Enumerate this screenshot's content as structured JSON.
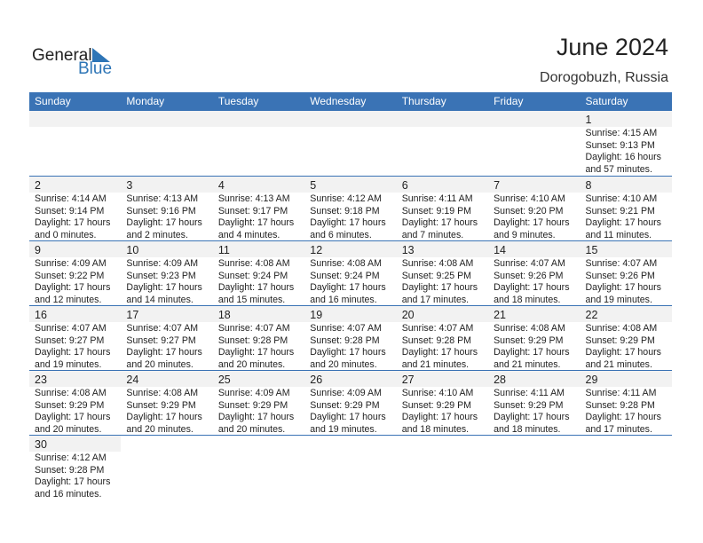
{
  "logo": {
    "text1": "General",
    "text2": "Blue"
  },
  "title": "June 2024",
  "location": "Dorogobuzh, Russia",
  "weekdays": [
    "Sunday",
    "Monday",
    "Tuesday",
    "Wednesday",
    "Thursday",
    "Friday",
    "Saturday"
  ],
  "accent": "#3a73b5",
  "weeks": [
    [
      null,
      null,
      null,
      null,
      null,
      null,
      {
        "day": "1",
        "sunrise": "Sunrise: 4:15 AM",
        "sunset": "Sunset: 9:13 PM",
        "daylight1": "Daylight: 16 hours",
        "daylight2": "and 57 minutes."
      }
    ],
    [
      {
        "day": "2",
        "sunrise": "Sunrise: 4:14 AM",
        "sunset": "Sunset: 9:14 PM",
        "daylight1": "Daylight: 17 hours",
        "daylight2": "and 0 minutes."
      },
      {
        "day": "3",
        "sunrise": "Sunrise: 4:13 AM",
        "sunset": "Sunset: 9:16 PM",
        "daylight1": "Daylight: 17 hours",
        "daylight2": "and 2 minutes."
      },
      {
        "day": "4",
        "sunrise": "Sunrise: 4:13 AM",
        "sunset": "Sunset: 9:17 PM",
        "daylight1": "Daylight: 17 hours",
        "daylight2": "and 4 minutes."
      },
      {
        "day": "5",
        "sunrise": "Sunrise: 4:12 AM",
        "sunset": "Sunset: 9:18 PM",
        "daylight1": "Daylight: 17 hours",
        "daylight2": "and 6 minutes."
      },
      {
        "day": "6",
        "sunrise": "Sunrise: 4:11 AM",
        "sunset": "Sunset: 9:19 PM",
        "daylight1": "Daylight: 17 hours",
        "daylight2": "and 7 minutes."
      },
      {
        "day": "7",
        "sunrise": "Sunrise: 4:10 AM",
        "sunset": "Sunset: 9:20 PM",
        "daylight1": "Daylight: 17 hours",
        "daylight2": "and 9 minutes."
      },
      {
        "day": "8",
        "sunrise": "Sunrise: 4:10 AM",
        "sunset": "Sunset: 9:21 PM",
        "daylight1": "Daylight: 17 hours",
        "daylight2": "and 11 minutes."
      }
    ],
    [
      {
        "day": "9",
        "sunrise": "Sunrise: 4:09 AM",
        "sunset": "Sunset: 9:22 PM",
        "daylight1": "Daylight: 17 hours",
        "daylight2": "and 12 minutes."
      },
      {
        "day": "10",
        "sunrise": "Sunrise: 4:09 AM",
        "sunset": "Sunset: 9:23 PM",
        "daylight1": "Daylight: 17 hours",
        "daylight2": "and 14 minutes."
      },
      {
        "day": "11",
        "sunrise": "Sunrise: 4:08 AM",
        "sunset": "Sunset: 9:24 PM",
        "daylight1": "Daylight: 17 hours",
        "daylight2": "and 15 minutes."
      },
      {
        "day": "12",
        "sunrise": "Sunrise: 4:08 AM",
        "sunset": "Sunset: 9:24 PM",
        "daylight1": "Daylight: 17 hours",
        "daylight2": "and 16 minutes."
      },
      {
        "day": "13",
        "sunrise": "Sunrise: 4:08 AM",
        "sunset": "Sunset: 9:25 PM",
        "daylight1": "Daylight: 17 hours",
        "daylight2": "and 17 minutes."
      },
      {
        "day": "14",
        "sunrise": "Sunrise: 4:07 AM",
        "sunset": "Sunset: 9:26 PM",
        "daylight1": "Daylight: 17 hours",
        "daylight2": "and 18 minutes."
      },
      {
        "day": "15",
        "sunrise": "Sunrise: 4:07 AM",
        "sunset": "Sunset: 9:26 PM",
        "daylight1": "Daylight: 17 hours",
        "daylight2": "and 19 minutes."
      }
    ],
    [
      {
        "day": "16",
        "sunrise": "Sunrise: 4:07 AM",
        "sunset": "Sunset: 9:27 PM",
        "daylight1": "Daylight: 17 hours",
        "daylight2": "and 19 minutes."
      },
      {
        "day": "17",
        "sunrise": "Sunrise: 4:07 AM",
        "sunset": "Sunset: 9:27 PM",
        "daylight1": "Daylight: 17 hours",
        "daylight2": "and 20 minutes."
      },
      {
        "day": "18",
        "sunrise": "Sunrise: 4:07 AM",
        "sunset": "Sunset: 9:28 PM",
        "daylight1": "Daylight: 17 hours",
        "daylight2": "and 20 minutes."
      },
      {
        "day": "19",
        "sunrise": "Sunrise: 4:07 AM",
        "sunset": "Sunset: 9:28 PM",
        "daylight1": "Daylight: 17 hours",
        "daylight2": "and 20 minutes."
      },
      {
        "day": "20",
        "sunrise": "Sunrise: 4:07 AM",
        "sunset": "Sunset: 9:28 PM",
        "daylight1": "Daylight: 17 hours",
        "daylight2": "and 21 minutes."
      },
      {
        "day": "21",
        "sunrise": "Sunrise: 4:08 AM",
        "sunset": "Sunset: 9:29 PM",
        "daylight1": "Daylight: 17 hours",
        "daylight2": "and 21 minutes."
      },
      {
        "day": "22",
        "sunrise": "Sunrise: 4:08 AM",
        "sunset": "Sunset: 9:29 PM",
        "daylight1": "Daylight: 17 hours",
        "daylight2": "and 21 minutes."
      }
    ],
    [
      {
        "day": "23",
        "sunrise": "Sunrise: 4:08 AM",
        "sunset": "Sunset: 9:29 PM",
        "daylight1": "Daylight: 17 hours",
        "daylight2": "and 20 minutes."
      },
      {
        "day": "24",
        "sunrise": "Sunrise: 4:08 AM",
        "sunset": "Sunset: 9:29 PM",
        "daylight1": "Daylight: 17 hours",
        "daylight2": "and 20 minutes."
      },
      {
        "day": "25",
        "sunrise": "Sunrise: 4:09 AM",
        "sunset": "Sunset: 9:29 PM",
        "daylight1": "Daylight: 17 hours",
        "daylight2": "and 20 minutes."
      },
      {
        "day": "26",
        "sunrise": "Sunrise: 4:09 AM",
        "sunset": "Sunset: 9:29 PM",
        "daylight1": "Daylight: 17 hours",
        "daylight2": "and 19 minutes."
      },
      {
        "day": "27",
        "sunrise": "Sunrise: 4:10 AM",
        "sunset": "Sunset: 9:29 PM",
        "daylight1": "Daylight: 17 hours",
        "daylight2": "and 18 minutes."
      },
      {
        "day": "28",
        "sunrise": "Sunrise: 4:11 AM",
        "sunset": "Sunset: 9:29 PM",
        "daylight1": "Daylight: 17 hours",
        "daylight2": "and 18 minutes."
      },
      {
        "day": "29",
        "sunrise": "Sunrise: 4:11 AM",
        "sunset": "Sunset: 9:28 PM",
        "daylight1": "Daylight: 17 hours",
        "daylight2": "and 17 minutes."
      }
    ],
    [
      {
        "day": "30",
        "sunrise": "Sunrise: 4:12 AM",
        "sunset": "Sunset: 9:28 PM",
        "daylight1": "Daylight: 17 hours",
        "daylight2": "and 16 minutes."
      },
      null,
      null,
      null,
      null,
      null,
      null
    ]
  ]
}
